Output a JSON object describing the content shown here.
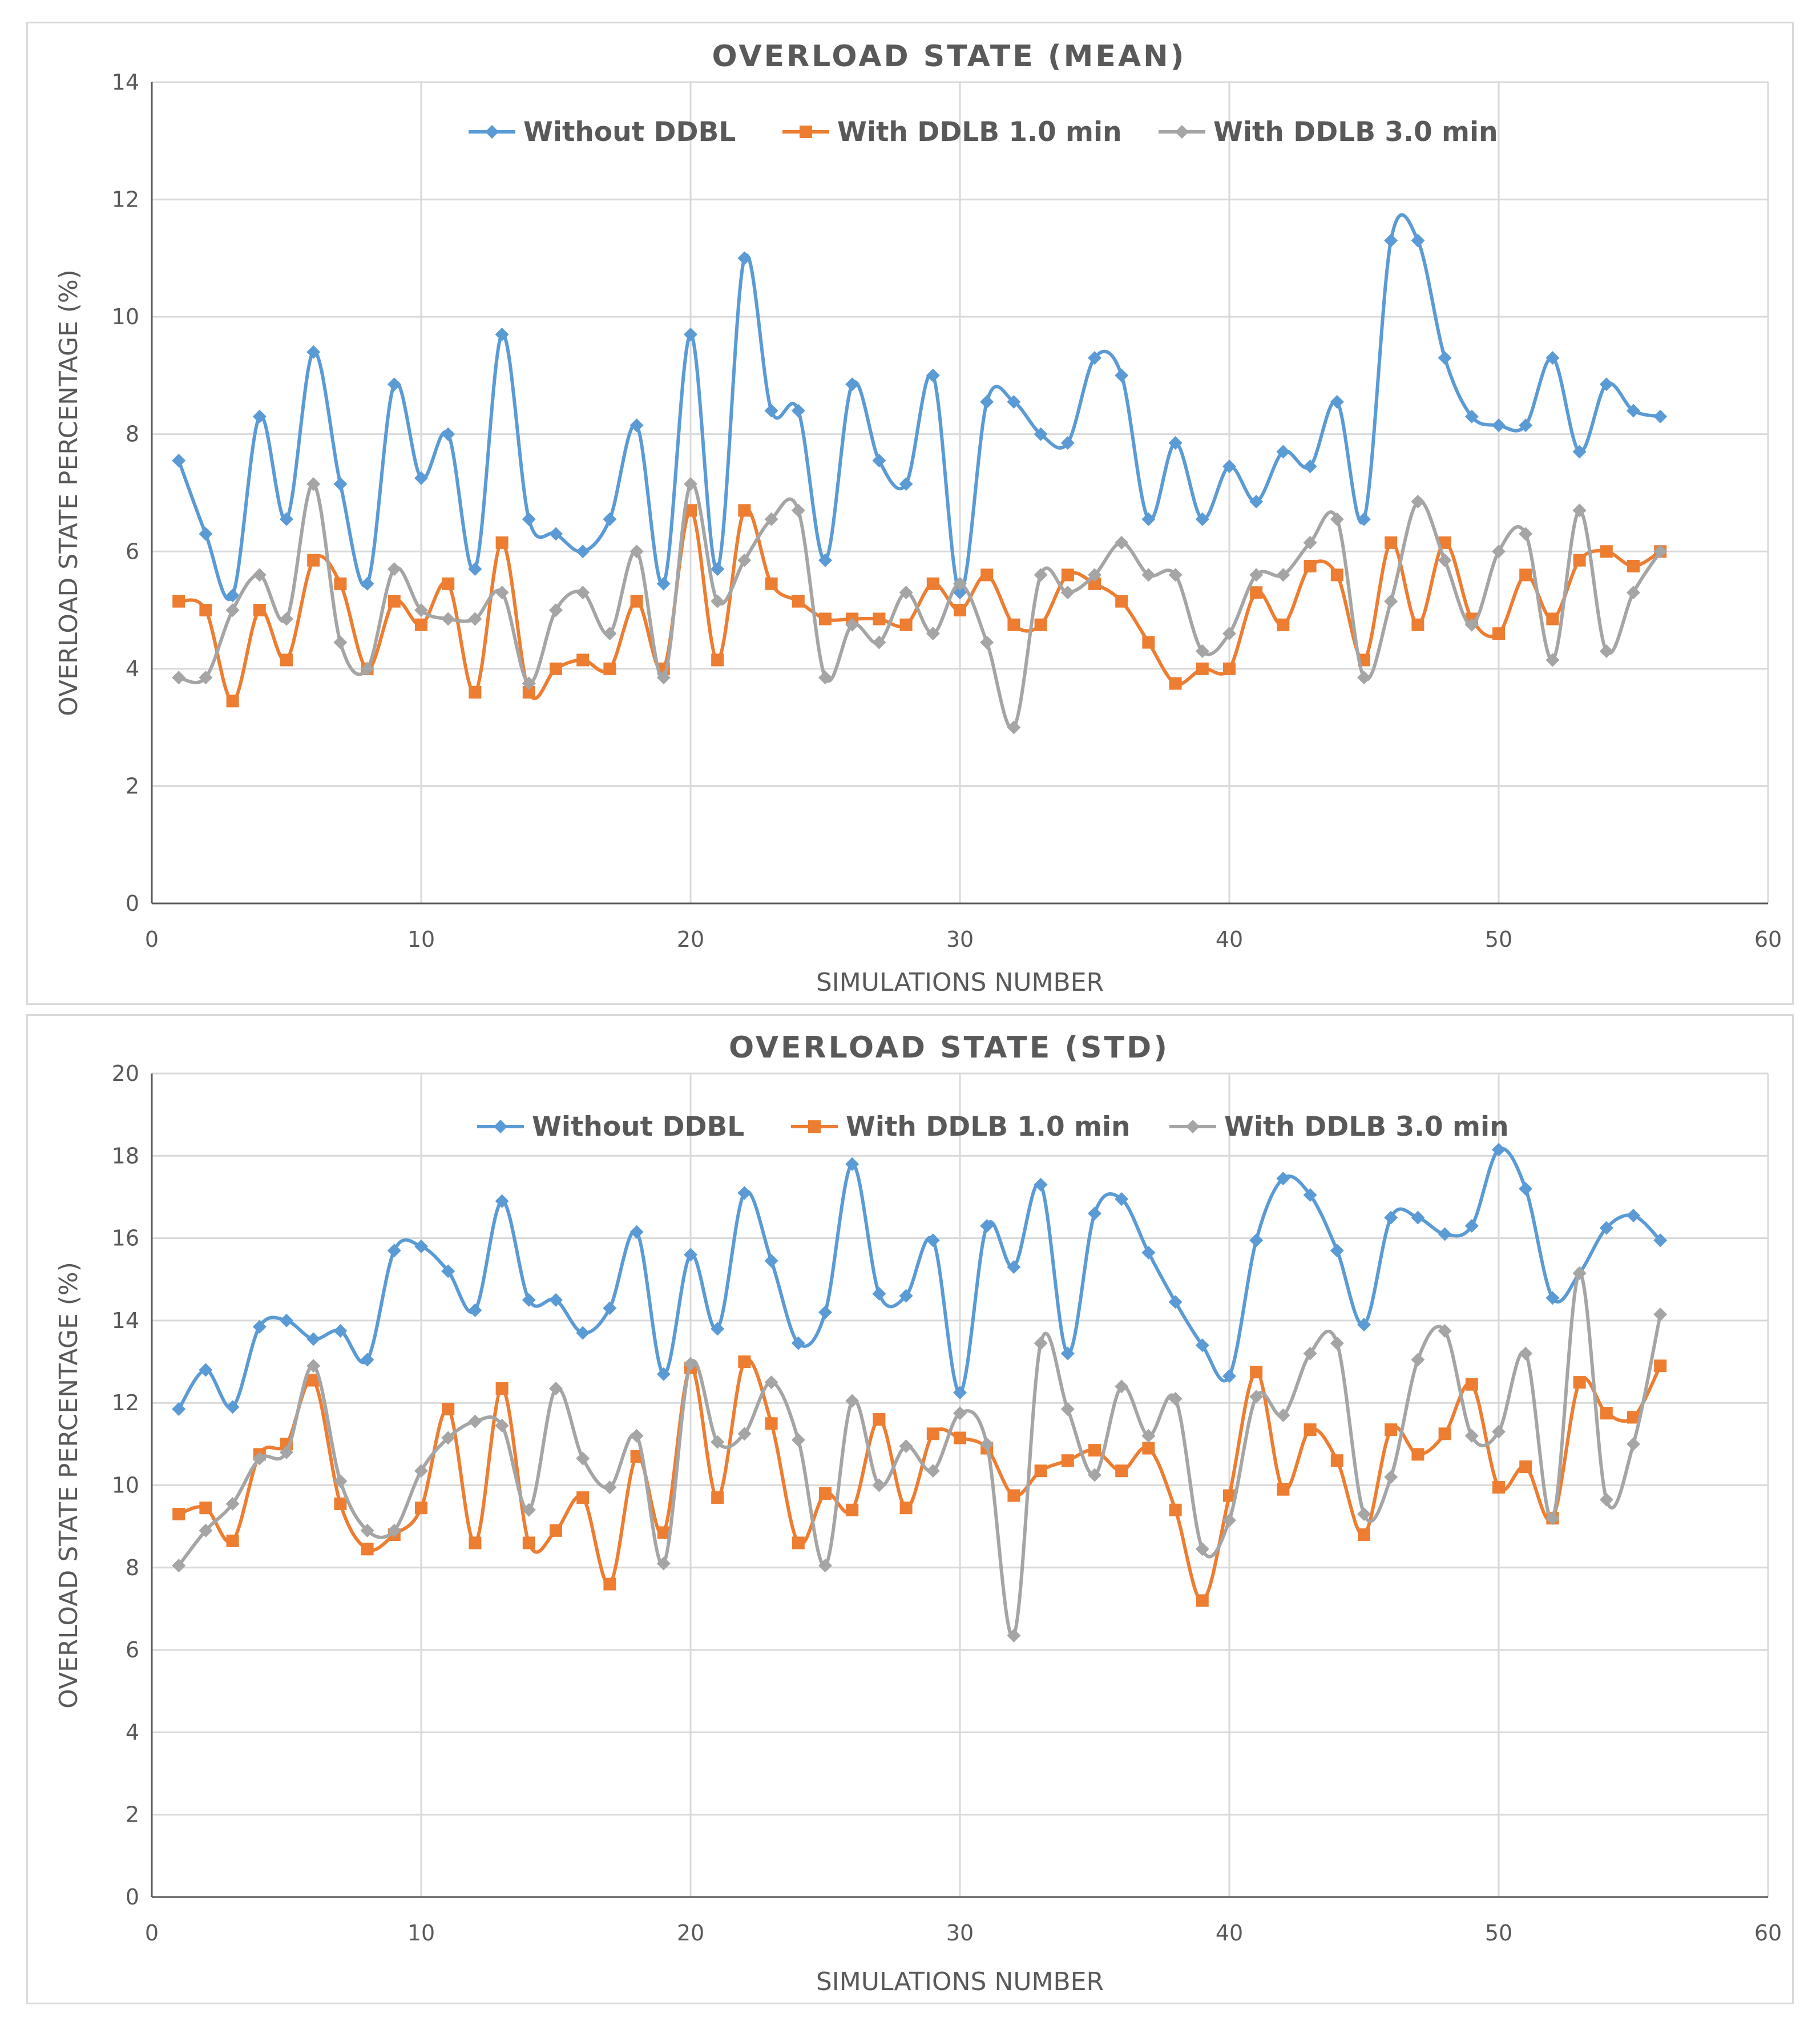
{
  "chart_data": [
    {
      "type": "line",
      "title": "OVERLOAD STATE (MEAN)",
      "xlabel": "SIMULATIONS NUMBER",
      "ylabel": "OVERLOAD STATE PERCENTAGE (%)",
      "xlim": [
        0,
        60
      ],
      "ylim": [
        0,
        14
      ],
      "xticks": [
        0,
        10,
        20,
        30,
        40,
        50,
        60
      ],
      "yticks": [
        0,
        2,
        4,
        6,
        8,
        10,
        12,
        14
      ],
      "grid": true,
      "legend_position": "top",
      "x": [
        1,
        2,
        3,
        4,
        5,
        6,
        7,
        8,
        9,
        10,
        11,
        12,
        13,
        14,
        15,
        16,
        17,
        18,
        19,
        20,
        21,
        22,
        23,
        24,
        25,
        26,
        27,
        28,
        29,
        30,
        31,
        32,
        33,
        34,
        35,
        36,
        37,
        38,
        39,
        40,
        41,
        42,
        43,
        44,
        45,
        46,
        47,
        48,
        49,
        50,
        51,
        52,
        53,
        54,
        55,
        56
      ],
      "series": [
        {
          "name": "Without DDBL",
          "color": "#5b9bd5",
          "marker": "diamond",
          "values": [
            7.55,
            6.3,
            5.25,
            8.3,
            6.55,
            9.4,
            7.15,
            5.45,
            8.85,
            7.25,
            8.0,
            5.7,
            9.7,
            6.55,
            6.3,
            6.0,
            6.55,
            8.15,
            5.45,
            9.7,
            5.7,
            11.0,
            8.4,
            8.4,
            5.85,
            8.85,
            7.55,
            7.15,
            9.0,
            5.3,
            8.55,
            8.55,
            8.0,
            7.85,
            9.3,
            9.0,
            6.55,
            7.85,
            6.55,
            7.45,
            6.85,
            7.7,
            7.45,
            8.55,
            6.55,
            11.3,
            11.3,
            9.3,
            8.3,
            8.15,
            8.15,
            9.3,
            7.7,
            8.85,
            8.4,
            8.3
          ]
        },
        {
          "name": "With DDLB 1.0 min",
          "color": "#ed7d31",
          "marker": "square",
          "values": [
            5.15,
            5.0,
            3.45,
            5.0,
            4.15,
            5.85,
            5.45,
            4.0,
            5.15,
            4.75,
            5.45,
            3.6,
            6.15,
            3.6,
            4.0,
            4.15,
            4.0,
            5.15,
            4.0,
            6.7,
            4.15,
            6.7,
            5.45,
            5.15,
            4.85,
            4.85,
            4.85,
            4.75,
            5.45,
            5.0,
            5.6,
            4.75,
            4.75,
            5.6,
            5.45,
            5.15,
            4.45,
            3.75,
            4.0,
            4.0,
            5.3,
            4.75,
            5.75,
            5.6,
            4.15,
            6.15,
            4.75,
            6.15,
            4.85,
            4.6,
            5.6,
            4.85,
            5.85,
            6.0,
            5.75,
            6.0
          ]
        },
        {
          "name": "With DDLB 3.0 min",
          "color": "#a5a5a5",
          "marker": "diamond",
          "values": [
            3.85,
            3.85,
            5.0,
            5.6,
            4.85,
            7.15,
            4.45,
            4.0,
            5.7,
            5.0,
            4.85,
            4.85,
            5.3,
            3.75,
            5.0,
            5.3,
            4.6,
            6.0,
            3.85,
            7.15,
            5.15,
            5.85,
            6.55,
            6.7,
            3.85,
            4.75,
            4.45,
            5.3,
            4.6,
            5.45,
            4.45,
            3.0,
            5.6,
            5.3,
            5.6,
            6.15,
            5.6,
            5.6,
            4.3,
            4.6,
            5.6,
            5.6,
            6.15,
            6.55,
            3.85,
            5.15,
            6.85,
            5.85,
            4.75,
            6.0,
            6.3,
            4.15,
            6.7,
            4.3,
            5.3,
            6.0
          ]
        }
      ]
    },
    {
      "type": "line",
      "title": "OVERLOAD STATE (STD)",
      "xlabel": "SIMULATIONS NUMBER",
      "ylabel": "OVERLOAD STATE PERCENTAGE (%)",
      "xlim": [
        0,
        60
      ],
      "ylim": [
        0,
        20
      ],
      "xticks": [
        0,
        10,
        20,
        30,
        40,
        50,
        60
      ],
      "yticks": [
        0,
        2,
        4,
        6,
        8,
        10,
        12,
        14,
        16,
        18,
        20
      ],
      "grid": true,
      "legend_position": "top",
      "x": [
        1,
        2,
        3,
        4,
        5,
        6,
        7,
        8,
        9,
        10,
        11,
        12,
        13,
        14,
        15,
        16,
        17,
        18,
        19,
        20,
        21,
        22,
        23,
        24,
        25,
        26,
        27,
        28,
        29,
        30,
        31,
        32,
        33,
        34,
        35,
        36,
        37,
        38,
        39,
        40,
        41,
        42,
        43,
        44,
        45,
        46,
        47,
        48,
        49,
        50,
        51,
        52,
        53,
        54,
        55,
        56
      ],
      "series": [
        {
          "name": "Without DDBL",
          "color": "#5b9bd5",
          "marker": "diamond",
          "values": [
            11.85,
            12.8,
            11.9,
            13.85,
            14.0,
            13.55,
            13.75,
            13.05,
            15.7,
            15.8,
            15.2,
            14.25,
            16.9,
            14.5,
            14.5,
            13.7,
            14.3,
            16.15,
            12.7,
            15.6,
            13.8,
            17.1,
            15.45,
            13.45,
            14.2,
            17.8,
            14.65,
            14.6,
            15.95,
            12.25,
            16.3,
            15.3,
            17.3,
            13.2,
            16.6,
            16.95,
            15.65,
            14.45,
            13.4,
            12.65,
            15.95,
            17.45,
            17.05,
            15.7,
            13.9,
            16.5,
            16.5,
            16.1,
            16.3,
            18.15,
            17.2,
            14.55,
            15.15,
            16.25,
            16.55,
            15.95
          ]
        },
        {
          "name": "With DDLB 1.0 min",
          "color": "#ed7d31",
          "marker": "square",
          "values": [
            9.3,
            9.45,
            8.65,
            10.75,
            11.0,
            12.55,
            9.55,
            8.45,
            8.8,
            9.45,
            11.85,
            8.6,
            12.35,
            8.6,
            8.9,
            9.7,
            7.6,
            10.7,
            8.85,
            12.85,
            9.7,
            13.0,
            11.5,
            8.6,
            9.8,
            9.4,
            11.6,
            9.45,
            11.25,
            11.15,
            10.9,
            9.75,
            10.35,
            10.6,
            10.85,
            10.35,
            10.9,
            9.4,
            7.2,
            9.75,
            12.75,
            9.9,
            11.35,
            10.6,
            8.8,
            11.35,
            10.75,
            11.25,
            12.45,
            9.95,
            10.45,
            9.2,
            12.5,
            11.75,
            11.65,
            12.9
          ]
        },
        {
          "name": "With DDLB 3.0 min",
          "color": "#a5a5a5",
          "marker": "diamond",
          "values": [
            8.05,
            8.9,
            9.55,
            10.65,
            10.8,
            12.9,
            10.1,
            8.9,
            8.9,
            10.35,
            11.15,
            11.55,
            11.45,
            9.4,
            12.35,
            10.65,
            9.95,
            11.2,
            8.1,
            12.95,
            11.05,
            11.25,
            12.5,
            11.1,
            8.05,
            12.05,
            10.0,
            10.95,
            10.35,
            11.75,
            11.0,
            6.35,
            13.45,
            11.85,
            10.25,
            12.4,
            11.2,
            12.1,
            8.45,
            9.15,
            12.15,
            11.7,
            13.2,
            13.45,
            9.3,
            10.2,
            13.05,
            13.75,
            11.2,
            11.3,
            13.2,
            9.2,
            15.15,
            9.65,
            11.0,
            14.15
          ]
        }
      ]
    }
  ]
}
